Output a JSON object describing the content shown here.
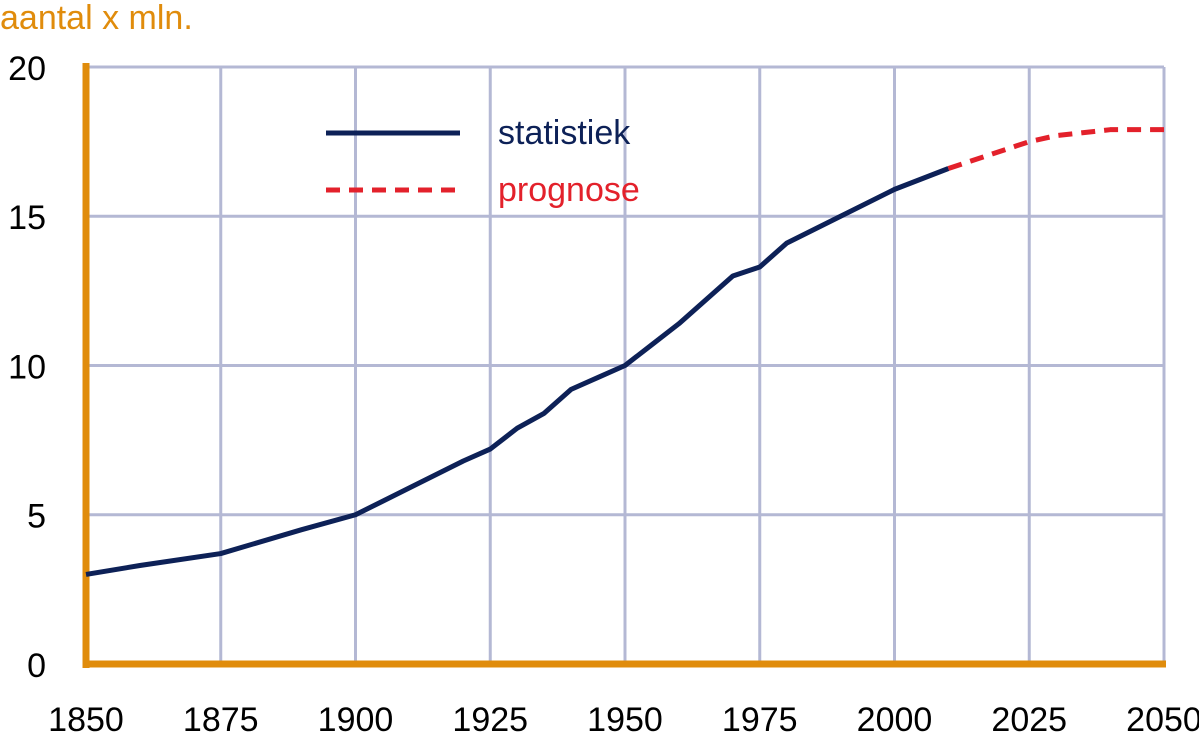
{
  "chart_data": {
    "type": "line",
    "ylabel": "aantal x mln.",
    "xlim": [
      1850,
      2050
    ],
    "xticks": [
      1850,
      1875,
      1900,
      1925,
      1950,
      1975,
      2000,
      2025,
      2050
    ],
    "ylim": [
      0,
      20
    ],
    "yticks": [
      0,
      5,
      10,
      15,
      20
    ],
    "grid": true,
    "legend": "top",
    "series": [
      {
        "name": "statistiek",
        "color": "#0d2157",
        "dash": false,
        "x": [
          1850,
          1860,
          1875,
          1890,
          1900,
          1910,
          1920,
          1925,
          1930,
          1935,
          1940,
          1945,
          1950,
          1955,
          1960,
          1970,
          1975,
          1980,
          1990,
          2000,
          2010
        ],
        "values": [
          3.0,
          3.3,
          3.7,
          4.5,
          5.0,
          5.9,
          6.8,
          7.2,
          7.9,
          8.4,
          9.2,
          9.6,
          10.0,
          10.7,
          11.4,
          13.0,
          13.3,
          14.1,
          15.0,
          15.9,
          16.6
        ]
      },
      {
        "name": "prognose",
        "color": "#e3212b",
        "dash": true,
        "x": [
          2010,
          2020,
          2025,
          2030,
          2040,
          2050
        ],
        "values": [
          16.6,
          17.2,
          17.5,
          17.7,
          17.9,
          17.9
        ]
      }
    ]
  }
}
